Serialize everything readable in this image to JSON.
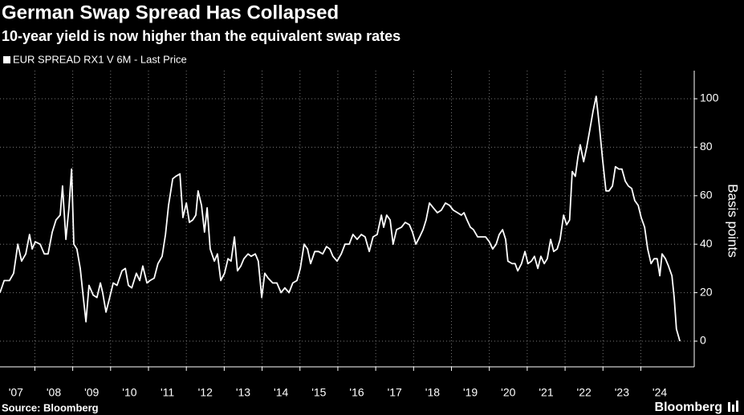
{
  "chart_data": {
    "type": "line",
    "title": "German Swap Spread Has Collapsed",
    "subtitle": "10-year yield is now higher than the equivalent swap rates",
    "y_axis_label": "Basis points",
    "source": "Source: Bloomberg",
    "brand": "Bloomberg",
    "legend": "top-left",
    "grid": true,
    "xlim": [
      2007.08,
      2025.41
    ],
    "ylim": [
      -10.6,
      111.6
    ],
    "yticks": [
      0,
      20,
      40,
      60,
      80,
      100
    ],
    "xticks": [
      {
        "value": 2007,
        "label": "'07"
      },
      {
        "value": 2008,
        "label": "'08"
      },
      {
        "value": 2009,
        "label": "'09"
      },
      {
        "value": 2010,
        "label": "'10"
      },
      {
        "value": 2011,
        "label": "'11"
      },
      {
        "value": 2012,
        "label": "'12"
      },
      {
        "value": 2013,
        "label": "'13"
      },
      {
        "value": 2014,
        "label": "'14"
      },
      {
        "value": 2015,
        "label": "'15"
      },
      {
        "value": 2016,
        "label": "'16"
      },
      {
        "value": 2017,
        "label": "'17"
      },
      {
        "value": 2018,
        "label": "'18"
      },
      {
        "value": 2019,
        "label": "'19"
      },
      {
        "value": 2020,
        "label": "'20"
      },
      {
        "value": 2021,
        "label": "'21"
      },
      {
        "value": 2022,
        "label": "'22"
      },
      {
        "value": 2023,
        "label": "'23"
      },
      {
        "value": 2024,
        "label": "'24"
      }
    ],
    "x": [
      2007.08,
      2007.19,
      2007.33,
      2007.44,
      2007.55,
      2007.65,
      2007.76,
      2007.86,
      2007.93,
      2008.01,
      2008.14,
      2008.25,
      2008.35,
      2008.46,
      2008.56,
      2008.67,
      2008.73,
      2008.82,
      2008.9,
      2008.97,
      2009.03,
      2009.11,
      2009.2,
      2009.28,
      2009.35,
      2009.43,
      2009.54,
      2009.64,
      2009.73,
      2009.79,
      2009.88,
      2009.96,
      2010.07,
      2010.17,
      2010.3,
      2010.39,
      2010.47,
      2010.56,
      2010.68,
      2010.77,
      2010.85,
      2010.96,
      2011.04,
      2011.15,
      2011.25,
      2011.36,
      2011.45,
      2011.53,
      2011.64,
      2011.72,
      2011.83,
      2011.91,
      2012.0,
      2012.08,
      2012.17,
      2012.25,
      2012.31,
      2012.4,
      2012.48,
      2012.55,
      2012.63,
      2012.74,
      2012.82,
      2012.91,
      2013.01,
      2013.1,
      2013.18,
      2013.27,
      2013.35,
      2013.44,
      2013.52,
      2013.63,
      2013.71,
      2013.82,
      2013.9,
      2013.99,
      2014.07,
      2014.16,
      2014.28,
      2014.39,
      2014.5,
      2014.6,
      2014.71,
      2014.81,
      2014.92,
      2015.01,
      2015.11,
      2015.2,
      2015.28,
      2015.39,
      2015.49,
      2015.6,
      2015.7,
      2015.79,
      2015.87,
      2015.98,
      2016.09,
      2016.19,
      2016.3,
      2016.4,
      2016.51,
      2016.62,
      2016.72,
      2016.83,
      2016.93,
      2017.04,
      2017.15,
      2017.21,
      2017.29,
      2017.38,
      2017.46,
      2017.55,
      2017.68,
      2017.78,
      2017.89,
      2017.97,
      2018.06,
      2018.16,
      2018.25,
      2018.33,
      2018.42,
      2018.52,
      2018.63,
      2018.73,
      2018.84,
      2018.95,
      2019.05,
      2019.16,
      2019.26,
      2019.33,
      2019.41,
      2019.5,
      2019.58,
      2019.69,
      2019.79,
      2019.9,
      2020.0,
      2020.09,
      2020.18,
      2020.26,
      2020.35,
      2020.43,
      2020.49,
      2020.6,
      2020.68,
      2020.75,
      2020.85,
      2020.94,
      2021.02,
      2021.11,
      2021.19,
      2021.28,
      2021.36,
      2021.45,
      2021.53,
      2021.62,
      2021.7,
      2021.79,
      2021.87,
      2021.96,
      2022.04,
      2022.12,
      2022.19,
      2022.27,
      2022.34,
      2022.4,
      2022.49,
      2022.57,
      2022.65,
      2022.74,
      2022.82,
      2022.91,
      2022.99,
      2023.08,
      2023.16,
      2023.25,
      2023.33,
      2023.42,
      2023.5,
      2023.59,
      2023.67,
      2023.76,
      2023.84,
      2023.93,
      2024.01,
      2024.1,
      2024.18,
      2024.27,
      2024.35,
      2024.43,
      2024.5,
      2024.56,
      2024.65,
      2024.73,
      2024.82,
      2024.88,
      2024.94,
      2025.03
    ],
    "series": [
      {
        "name": "EUR SPREAD RX1 V 6M - Last Price",
        "color": "#ffffff",
        "values": [
          20,
          25,
          25,
          28,
          40,
          33,
          36,
          44,
          38,
          41,
          40,
          36,
          36,
          45,
          50,
          52,
          64,
          42,
          55,
          71,
          40,
          38,
          30,
          18,
          8,
          23,
          19,
          18,
          24,
          20,
          12,
          17,
          24,
          23,
          29,
          30,
          23,
          22,
          28,
          25,
          31,
          24,
          25,
          26,
          32,
          35,
          44,
          56,
          67,
          68,
          69,
          51,
          57,
          49,
          50,
          52,
          62,
          56,
          45,
          55,
          38,
          33,
          36,
          25,
          28,
          34,
          33,
          43,
          29,
          31,
          34,
          36,
          35,
          36,
          33,
          18,
          28,
          26,
          24,
          24,
          20,
          22,
          20,
          24,
          25,
          30,
          40,
          38,
          32,
          37,
          37,
          36,
          39,
          38,
          35,
          33,
          36,
          40,
          40,
          44,
          42,
          44,
          43,
          37,
          43,
          44,
          52,
          47,
          52,
          50,
          40,
          46,
          47,
          49,
          48,
          45,
          40,
          43,
          46,
          50,
          57,
          55,
          53,
          54,
          57,
          56,
          54,
          53,
          52,
          53,
          50,
          47,
          46,
          43,
          43,
          43,
          41,
          38,
          40,
          44,
          46,
          42,
          33,
          32,
          32,
          29,
          32,
          37,
          32,
          33,
          35,
          30,
          35,
          32,
          34,
          42,
          37,
          38,
          42,
          52,
          48,
          50,
          70,
          68,
          76,
          81,
          74,
          80,
          87,
          95,
          101,
          88,
          75,
          62,
          62,
          64,
          72,
          71,
          71,
          66,
          64,
          63,
          58,
          56,
          51,
          47,
          38,
          32,
          34,
          34,
          27,
          36,
          34,
          31,
          27,
          18,
          5,
          0
        ]
      }
    ]
  }
}
